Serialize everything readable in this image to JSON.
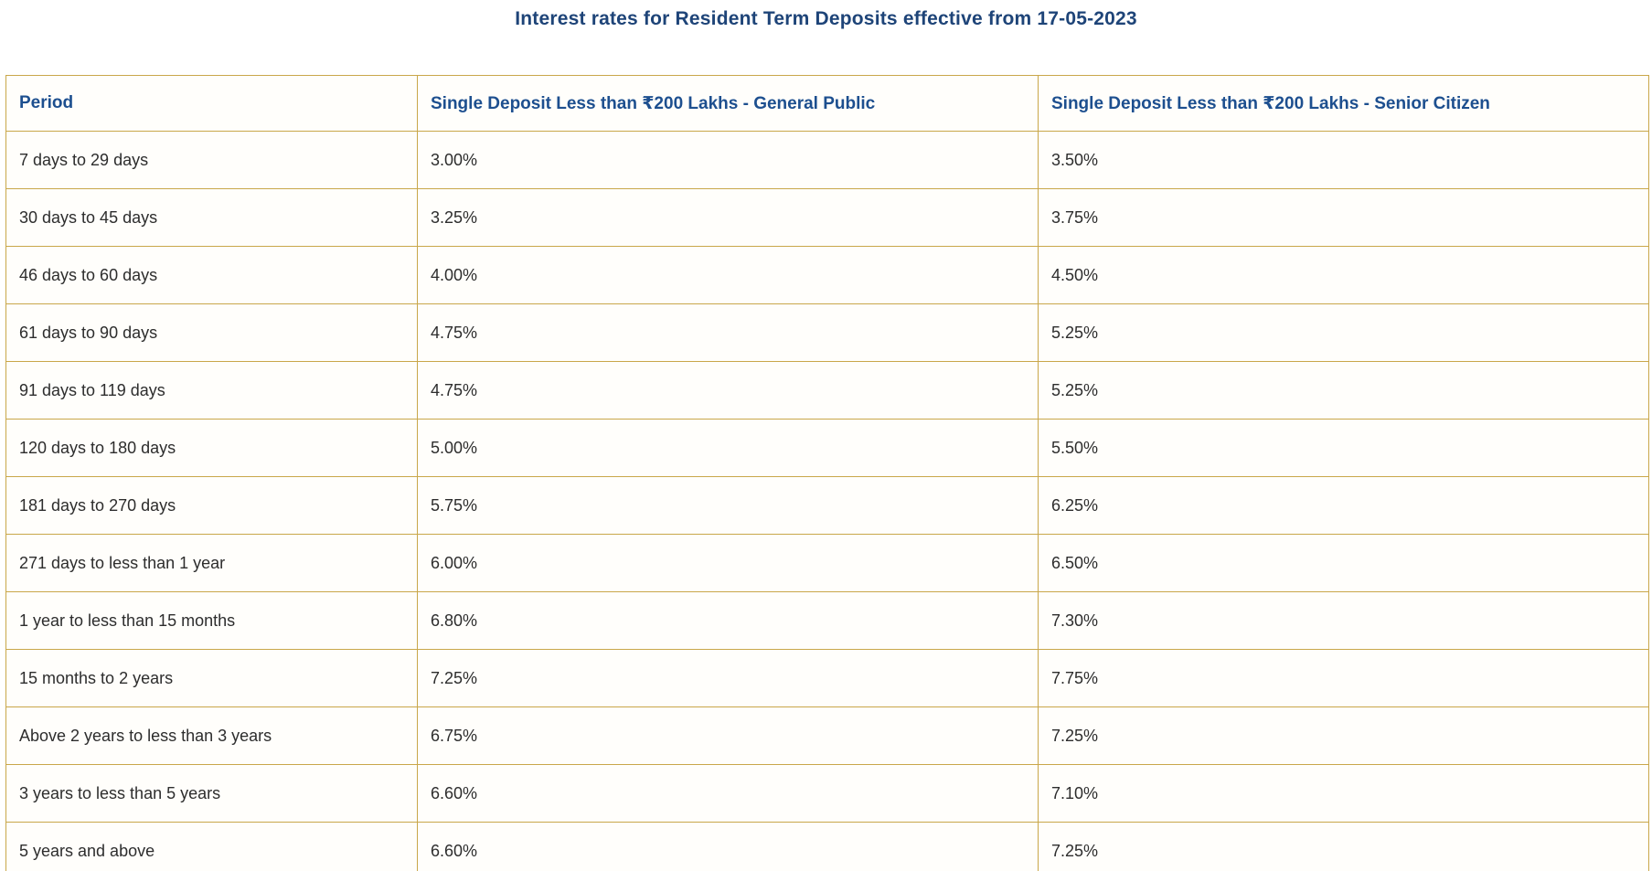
{
  "page": {
    "title": "Interest rates for Resident Term Deposits effective from 17-05-2023"
  },
  "colors": {
    "title_text": "#1e4478",
    "header_text": "#1d4f8f",
    "table_border": "#c9a74a",
    "body_text": "#2d2d2d",
    "background": "#ffffff"
  },
  "table": {
    "columns": [
      "Period",
      "Single Deposit Less than ₹200 Lakhs - General Public",
      "Single Deposit Less than ₹200 Lakhs - Senior Citizen"
    ],
    "rows": [
      [
        "7 days to 29 days",
        "3.00%",
        "3.50%"
      ],
      [
        "30 days to 45 days",
        "3.25%",
        "3.75%"
      ],
      [
        "46 days to 60 days",
        "4.00%",
        "4.50%"
      ],
      [
        "61 days to 90 days",
        "4.75%",
        "5.25%"
      ],
      [
        "91 days to 119 days",
        "4.75%",
        "5.25%"
      ],
      [
        "120 days to 180 days",
        "5.00%",
        "5.50%"
      ],
      [
        "181 days to 270 days",
        "5.75%",
        "6.25%"
      ],
      [
        "271 days to less than 1 year",
        "6.00%",
        "6.50%"
      ],
      [
        "1 year to less than 15 months",
        "6.80%",
        "7.30%"
      ],
      [
        "15 months to 2 years",
        "7.25%",
        "7.75%"
      ],
      [
        "Above 2 years to less than 3 years",
        "6.75%",
        "7.25%"
      ],
      [
        "3 years to less than 5 years",
        "6.60%",
        "7.10%"
      ],
      [
        "5 years and above",
        "6.60%",
        "7.25%"
      ]
    ]
  }
}
